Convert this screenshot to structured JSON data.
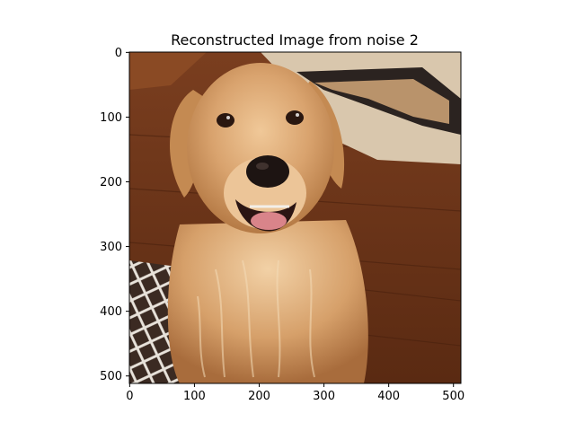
{
  "figure": {
    "title": "Reconstructed Image from noise 2",
    "image_description": "photo of a golden retriever sitting on a wooden floor with a patterned rug, mouth open"
  },
  "chart_data": {
    "type": "image",
    "title": "Reconstructed Image from noise 2",
    "xlabel": "",
    "ylabel": "",
    "xlim": [
      0,
      511
    ],
    "ylim": [
      511,
      0
    ],
    "x_ticks": [
      0,
      100,
      200,
      300,
      400,
      500
    ],
    "y_ticks": [
      0,
      100,
      200,
      300,
      400,
      500
    ],
    "grid": false
  }
}
